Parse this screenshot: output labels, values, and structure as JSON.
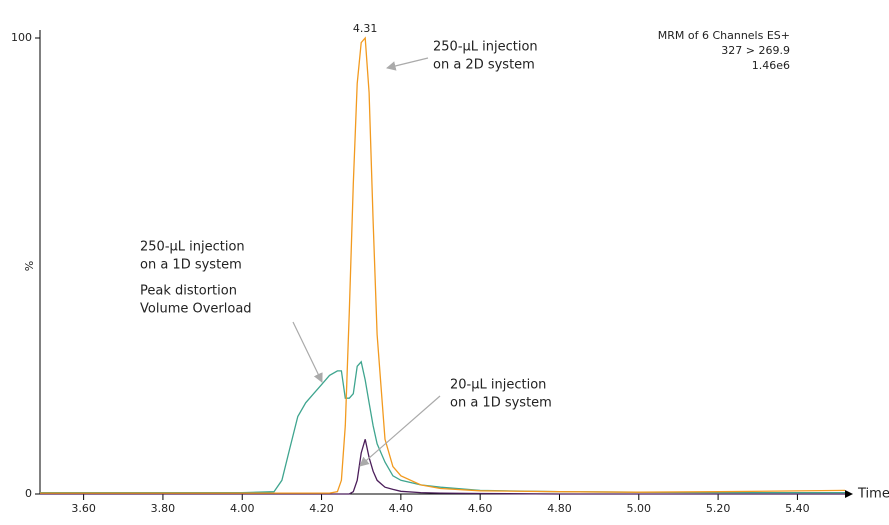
{
  "chart_data": {
    "type": "line",
    "x_label": "Time",
    "y_label": "%",
    "peak_label": 4.31,
    "header": [
      "MRM of 6 Channels ES+",
      "327 > 269.9",
      "1.46e6"
    ],
    "x": [
      3.49,
      4.0,
      4.08,
      4.1,
      4.12,
      4.14,
      4.16,
      4.18,
      4.2,
      4.22,
      4.24,
      4.25,
      4.26,
      4.27,
      4.28,
      4.29,
      4.3,
      4.31,
      4.32,
      4.33,
      4.34,
      4.36,
      4.38,
      4.4,
      4.45,
      4.5,
      4.6,
      4.8,
      5.0,
      5.2,
      5.52
    ],
    "series": [
      {
        "color": "#f29a1f",
        "values": [
          0.2,
          0.2,
          0.2,
          0.2,
          0.2,
          0.2,
          0.2,
          0.2,
          0.2,
          0.2,
          0.5,
          3,
          15,
          40,
          68,
          90,
          99,
          100,
          88,
          60,
          35,
          12,
          6,
          4,
          2,
          1.2,
          0.7,
          0.5,
          0.4,
          0.5,
          0.8
        ]
      },
      {
        "color": "#3fa58f",
        "values": [
          0.3,
          0.3,
          0.5,
          3,
          10,
          17,
          20,
          22,
          24,
          26,
          27,
          27,
          21,
          21,
          22,
          28,
          29,
          25,
          20,
          15,
          11,
          7,
          4,
          3,
          2,
          1.5,
          0.8,
          0.5,
          0.4,
          0.3,
          0.3
        ]
      },
      {
        "color": "#4b1e5a",
        "values": [
          0,
          0,
          0,
          0,
          0,
          0,
          0,
          0,
          0,
          0,
          0,
          0,
          0,
          0,
          0.5,
          3,
          9,
          12,
          8,
          5,
          3,
          1.5,
          1,
          0.6,
          0.3,
          0.2,
          0.1,
          0,
          0,
          0,
          0
        ]
      }
    ],
    "annotations": [
      {
        "lines": [
          "250-µL injection",
          "on a 2D system"
        ],
        "color": "#f29a1f"
      },
      {
        "lines": [
          "250-µL injection",
          "on a 1D system"
        ],
        "color": "#3fa58f"
      },
      {
        "lines": [
          "Peak distortion",
          "Volume Overload"
        ],
        "color": "#3fa58f"
      },
      {
        "lines": [
          "20-µL injection",
          "on a 1D system"
        ],
        "color": "#4b1e5a"
      }
    ],
    "xlim": [
      3.49,
      5.52
    ],
    "ylim": [
      0,
      100
    ],
    "xticks": [
      {
        "value": 3.6,
        "label": "3.60"
      },
      {
        "value": 3.8,
        "label": "3.80"
      },
      {
        "value": 4.0,
        "label": "4.00"
      },
      {
        "value": 4.2,
        "label": "4.20"
      },
      {
        "value": 4.4,
        "label": "4.40"
      },
      {
        "value": 4.6,
        "label": "4.60"
      },
      {
        "value": 4.8,
        "label": "4.80"
      },
      {
        "value": 5.0,
        "label": "5.00"
      },
      {
        "value": 5.2,
        "label": "5.20"
      },
      {
        "value": 5.4,
        "label": "5.40"
      }
    ],
    "yticks": [
      0,
      100
    ]
  }
}
